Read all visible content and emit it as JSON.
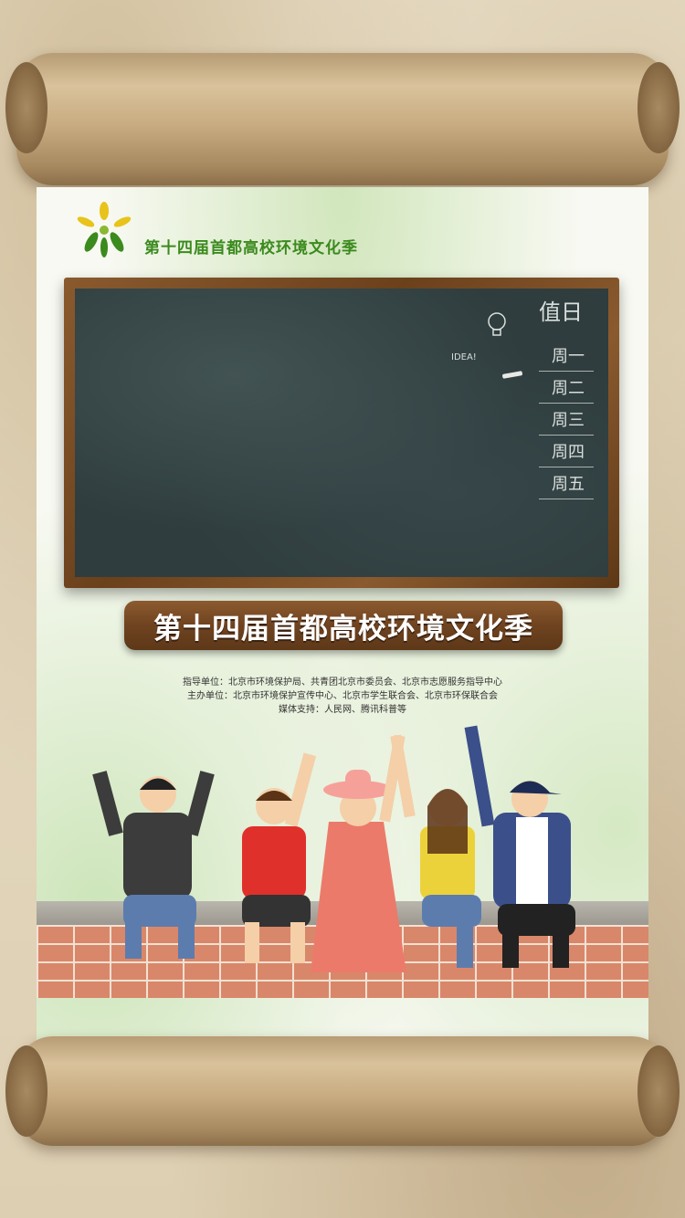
{
  "poster": {
    "top_title": "第十四届首都高校环境文化季",
    "sign_title": "第十四届首都高校环境文化季"
  },
  "chalkboard": {
    "duty_header": "值日",
    "days": [
      "周一",
      "周二",
      "周三",
      "周四",
      "周五"
    ],
    "note": "IDEA!"
  },
  "credits": {
    "guide_label": "指导单位：",
    "guide": "北京市环境保护局、共青团北京市委员会、北京市志愿服务指导中心",
    "host_label": "主办单位：",
    "host": "北京市环境保护宣传中心、北京市学生联合会、北京市环保联合会",
    "media_label": "媒体支持：",
    "media": "人民网、腾讯科普等"
  },
  "colors": {
    "accent_green": "#3b8a1e",
    "logo_yellow": "#e8c31a",
    "sign_wood": "#6f4320",
    "board": "#2f3d3e"
  },
  "icons": [
    "sun-leaf-logo-icon",
    "lightbulb-icon"
  ]
}
